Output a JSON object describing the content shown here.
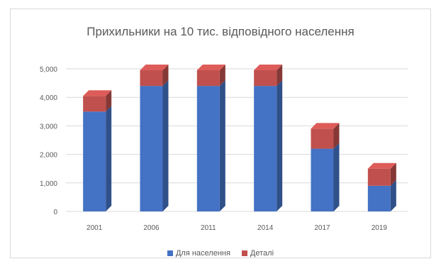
{
  "chart_data": {
    "type": "bar",
    "stacked": true,
    "title": "Прихильники на 10 тис. відповідного населення",
    "categories": [
      "2001",
      "2006",
      "2011",
      "2014",
      "2017",
      "2019"
    ],
    "series": [
      {
        "name": "Для населення",
        "color": "#4472c4",
        "values": [
          3500,
          4400,
          4400,
          4400,
          2200,
          900
        ]
      },
      {
        "name": "Деталі",
        "color": "#c0504d",
        "values": [
          550,
          550,
          550,
          550,
          700,
          600
        ]
      }
    ],
    "ylim": [
      0,
      5000
    ],
    "yticks": [
      0,
      1000,
      2000,
      3000,
      4000,
      5000
    ],
    "ytick_labels": [
      "0",
      "1,000",
      "2,000",
      "3,000",
      "4,000",
      "5,000"
    ],
    "grid": true,
    "legend_position": "bottom"
  }
}
